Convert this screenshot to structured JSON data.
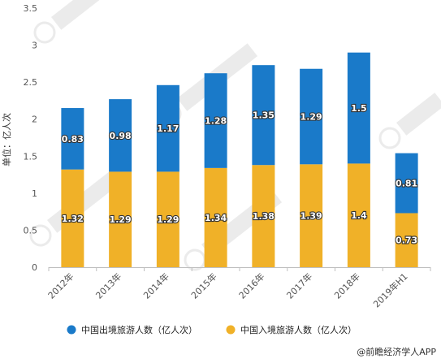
{
  "chart_data": {
    "type": "bar",
    "stacked": true,
    "categories": [
      "2012年",
      "2013年",
      "2014年",
      "2015年",
      "2016年",
      "2017年",
      "2018年",
      "2019年H1"
    ],
    "series": [
      {
        "name": "中国入境旅游人数（亿人次）",
        "values": [
          1.32,
          1.29,
          1.29,
          1.34,
          1.38,
          1.39,
          1.4,
          0.73
        ],
        "color": "#f0b128"
      },
      {
        "name": "中国出境旅游人数（亿人次）",
        "values": [
          0.83,
          0.98,
          1.17,
          1.28,
          1.35,
          1.29,
          1.5,
          0.81
        ],
        "color": "#1a7ac9"
      }
    ],
    "ylabel": "单位：亿人次",
    "ylim": [
      0,
      3.5
    ],
    "yticks": [
      0,
      0.5,
      1,
      1.5,
      2,
      2.5,
      3,
      3.5
    ],
    "grid": false,
    "legend_position": "bottom"
  },
  "legend": [
    {
      "label": "中国出境旅游人数（亿人次）",
      "color": "#1a7ac9"
    },
    {
      "label": "中国入境旅游人数（亿人次）",
      "color": "#f0b128"
    }
  ],
  "footer": {
    "credit": "@前瞻经济学人APP"
  }
}
